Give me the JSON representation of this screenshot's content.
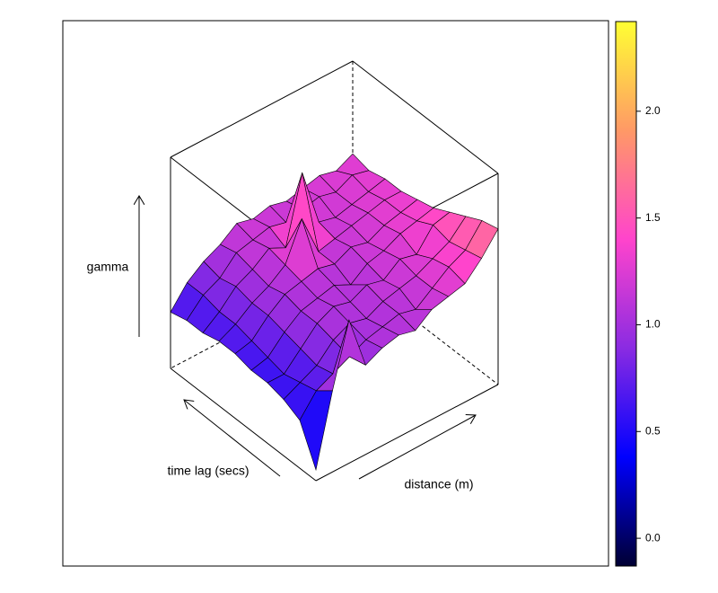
{
  "chart_data": {
    "type": "surface",
    "zlabel": "gamma",
    "ylabel": "time lag (secs)",
    "xlabel": "distance (m)",
    "z": [
      [
        0.0,
        0.85,
        1.6,
        0.95,
        1.05,
        1.1,
        1.05,
        1.2,
        1.25,
        1.3,
        1.5,
        1.75
      ],
      [
        0.45,
        0.7,
        0.8,
        0.9,
        1.0,
        1.05,
        1.1,
        1.05,
        1.2,
        1.35,
        1.45,
        1.7
      ],
      [
        0.55,
        0.65,
        0.75,
        0.95,
        1.05,
        1.0,
        1.1,
        1.15,
        1.2,
        1.3,
        1.4,
        1.6
      ],
      [
        0.6,
        0.6,
        0.8,
        1.0,
        1.1,
        1.05,
        1.15,
        1.1,
        1.25,
        1.2,
        1.45,
        1.5
      ],
      [
        0.6,
        0.65,
        0.85,
        1.0,
        1.05,
        1.1,
        1.0,
        1.15,
        1.2,
        1.3,
        1.35,
        1.4
      ],
      [
        0.65,
        0.7,
        0.9,
        1.05,
        1.1,
        1.15,
        1.1,
        1.2,
        1.15,
        1.25,
        1.3,
        1.35
      ],
      [
        0.65,
        0.75,
        0.9,
        1.0,
        1.15,
        1.6,
        1.1,
        1.15,
        1.2,
        1.25,
        1.3,
        1.3
      ],
      [
        0.6,
        0.75,
        0.95,
        1.05,
        1.2,
        1.1,
        1.9,
        1.2,
        1.15,
        1.2,
        1.25,
        1.3
      ],
      [
        0.6,
        0.8,
        0.9,
        1.1,
        1.15,
        1.2,
        1.15,
        1.2,
        1.25,
        1.2,
        1.3,
        1.25
      ],
      [
        0.55,
        0.8,
        0.95,
        1.05,
        1.2,
        1.15,
        1.2,
        1.15,
        1.2,
        1.25,
        1.2,
        1.3
      ]
    ],
    "zlim": [
      -0.13,
      2.42
    ],
    "zticks": [
      {
        "value": 0,
        "label": "0.0"
      },
      0.5,
      {
        "value": 1,
        "label": "1.0"
      },
      1.5,
      {
        "value": 2,
        "label": "2.0"
      }
    ],
    "colors": [
      "#000033",
      "#0000ff",
      "#8a2be2",
      "#ff44cc",
      "#ff9966",
      "#ffff33"
    ]
  }
}
